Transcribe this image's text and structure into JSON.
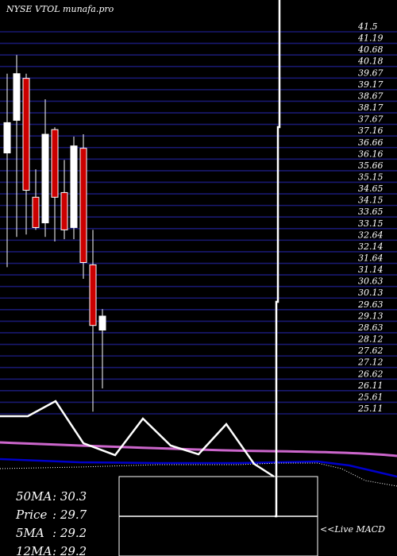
{
  "chart_data": {
    "type": "candlestick",
    "title": "NYSE VTOL munafa.pro",
    "y_ticks": [
      "41.5",
      "41.19",
      "40.68",
      "40.18",
      "39.67",
      "39.17",
      "38.67",
      "38.17",
      "37.67",
      "37.16",
      "36.66",
      "36.16",
      "35.66",
      "35.15",
      "34.65",
      "34.15",
      "33.65",
      "33.15",
      "32.64",
      "32.14",
      "31.64",
      "31.14",
      "30.63",
      "30.13",
      "29.63",
      "29.13",
      "28.63",
      "28.12",
      "27.62",
      "27.12",
      "26.62",
      "26.11",
      "25.61",
      "25.11"
    ],
    "ylim": [
      25.11,
      41.5
    ],
    "grid": true,
    "candles": [
      {
        "open": 37.5,
        "high": 39.6,
        "low": 31.3,
        "close": 36.2,
        "color": "white"
      },
      {
        "open": 37.6,
        "high": 40.4,
        "low": 32.6,
        "close": 39.6,
        "color": "white"
      },
      {
        "open": 39.4,
        "high": 39.6,
        "low": 32.7,
        "close": 34.6,
        "color": "red"
      },
      {
        "open": 34.3,
        "high": 35.5,
        "low": 32.9,
        "close": 33.0,
        "color": "red"
      },
      {
        "open": 33.2,
        "high": 38.5,
        "low": 32.6,
        "close": 37.0,
        "color": "white"
      },
      {
        "open": 37.2,
        "high": 37.3,
        "low": 32.4,
        "close": 34.3,
        "color": "red"
      },
      {
        "open": 34.5,
        "high": 35.9,
        "low": 32.5,
        "close": 32.9,
        "color": "red"
      },
      {
        "open": 33.0,
        "high": 36.9,
        "low": 32.5,
        "close": 36.5,
        "color": "white"
      },
      {
        "open": 36.4,
        "high": 37.0,
        "low": 30.8,
        "close": 31.5,
        "color": "red"
      },
      {
        "open": 31.4,
        "high": 32.9,
        "low": 25.1,
        "close": 28.8,
        "color": "red"
      },
      {
        "open": 28.6,
        "high": 29.5,
        "low": 26.1,
        "close": 29.2,
        "color": "white"
      }
    ],
    "stats": [
      {
        "label": "50MA",
        "value": "30.3"
      },
      {
        "label": "Price",
        "value": "29.7"
      },
      {
        "label": "5MA",
        "value": "29.2"
      },
      {
        "label": "12MA",
        "value": "29.2"
      }
    ],
    "macd_label": "<<Live MACD",
    "colors": {
      "grid": "#191970",
      "up": "#ffffff",
      "down": "#cc0000",
      "ma_magenta": "#cc66cc",
      "ma_blue": "#0000cc"
    }
  }
}
